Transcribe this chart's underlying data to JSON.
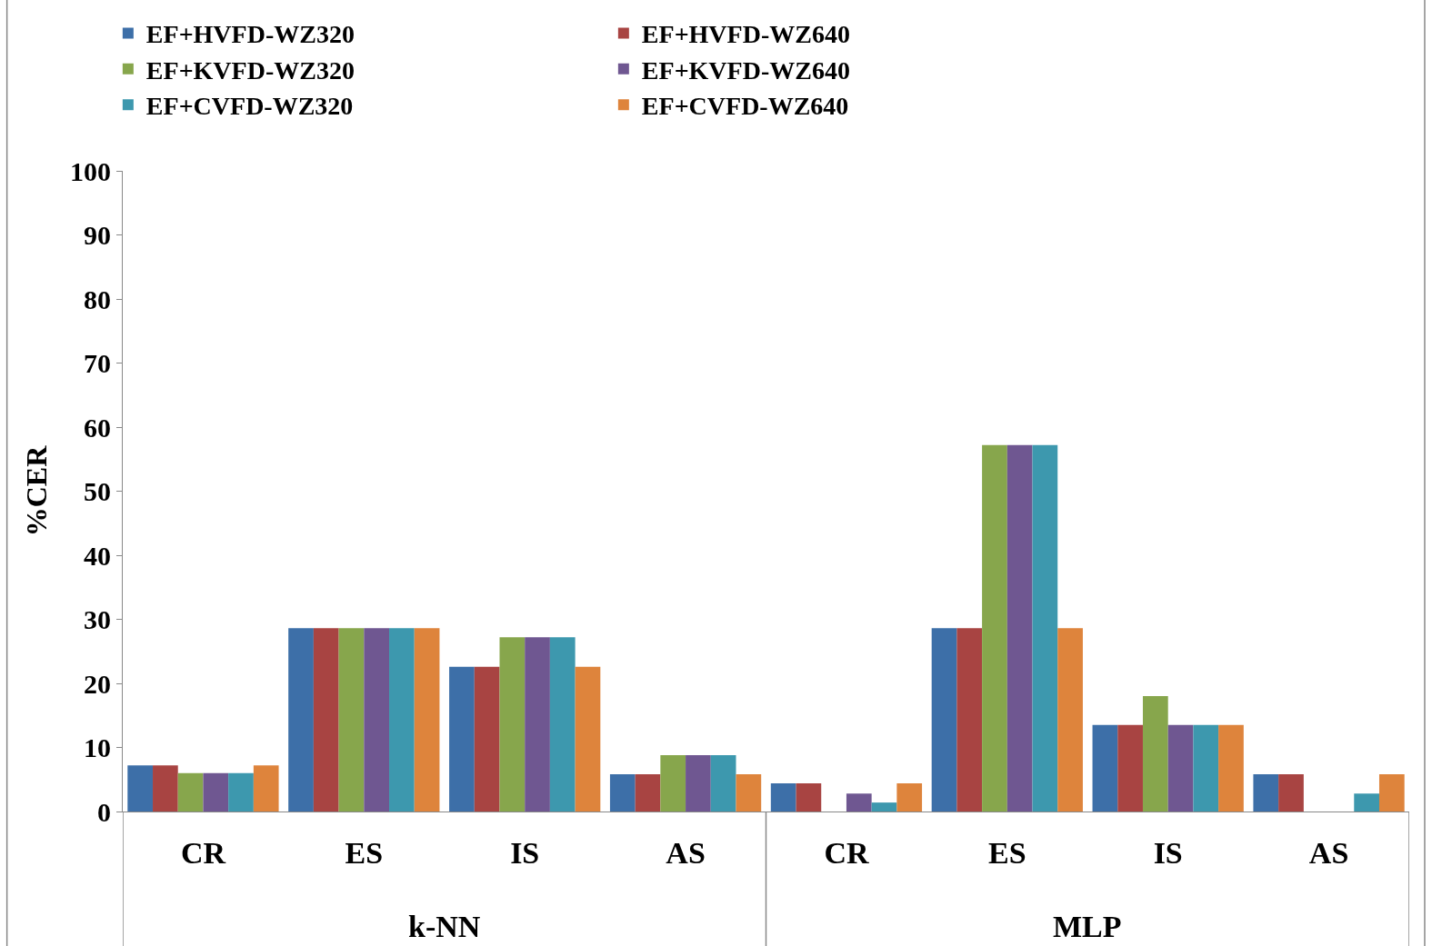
{
  "chart_data": {
    "type": "bar",
    "ylabel": "%CER",
    "categories": [
      "CR",
      "ES",
      "IS",
      "AS",
      "CR",
      "ES",
      "IS",
      "AS"
    ],
    "series": [
      {
        "name": "EF+HVFD-WZ320",
        "color": "#3d6fa8",
        "values": [
          7.2,
          28.6,
          22.6,
          5.8,
          4.4,
          28.6,
          13.5,
          5.8
        ]
      },
      {
        "name": "EF+HVFD-WZ640",
        "color": "#a84442",
        "values": [
          7.2,
          28.6,
          22.6,
          5.8,
          4.4,
          28.6,
          13.5,
          5.8
        ]
      },
      {
        "name": "EF+KVFD-WZ320",
        "color": "#87a64c",
        "values": [
          6.0,
          28.6,
          27.2,
          8.8,
          0,
          57.2,
          18.0,
          0
        ]
      },
      {
        "name": "EF+KVFD-WZ640",
        "color": "#6f5791",
        "values": [
          6.0,
          28.6,
          27.2,
          8.8,
          2.8,
          57.2,
          13.5,
          0
        ]
      },
      {
        "name": "EF+CVFD-WZ320",
        "color": "#3d98ae",
        "values": [
          6.0,
          28.6,
          27.2,
          8.8,
          1.4,
          57.2,
          13.5,
          2.8
        ]
      },
      {
        "name": "EF+CVFD-WZ640",
        "color": "#de843c",
        "values": [
          7.2,
          28.6,
          22.6,
          5.8,
          4.4,
          28.6,
          13.5,
          5.8
        ]
      }
    ],
    "annotations": [
      "k-NN",
      "MLP"
    ],
    "ylim": [
      0,
      100
    ],
    "yticks": [
      0,
      10,
      20,
      30,
      40,
      50,
      60,
      70,
      80,
      90,
      100
    ],
    "legend": "top"
  }
}
